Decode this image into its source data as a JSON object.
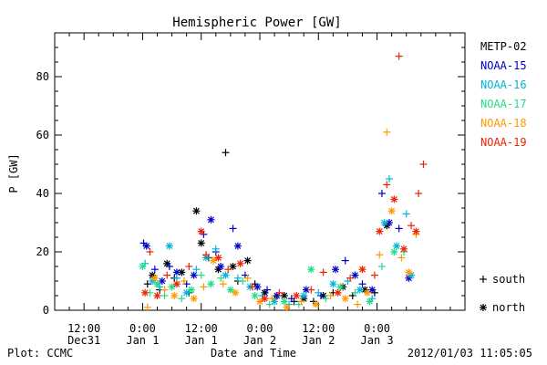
{
  "chart_data": {
    "type": "scatter",
    "title": "Hemispheric Power [GW]",
    "xlabel": "Date and Time",
    "ylabel": "P [GW]",
    "footer_left": "Plot: CCMC",
    "footer_right": "2012/01/03 11:05:05",
    "x_unit": "hours from 2012-01-01 00:00",
    "xlim": [
      -18,
      66
    ],
    "ylim": [
      0,
      95
    ],
    "grid": false,
    "legend_position": "right",
    "x_ticks": [
      {
        "value": -12,
        "line1": "12:00",
        "line2": "Dec31"
      },
      {
        "value": 0,
        "line1": "0:00",
        "line2": "Jan 1"
      },
      {
        "value": 12,
        "line1": "12:00",
        "line2": "Jan 1"
      },
      {
        "value": 24,
        "line1": "0:00",
        "line2": "Jan 2"
      },
      {
        "value": 36,
        "line1": "12:00",
        "line2": "Jan 2"
      },
      {
        "value": 48,
        "line1": "0:00",
        "line2": "Jan 3"
      }
    ],
    "y_ticks": [
      0,
      20,
      40,
      60,
      80
    ],
    "symbol_legend": [
      {
        "symbol": "+",
        "label": "south"
      },
      {
        "symbol": "*",
        "label": "north"
      }
    ],
    "series": [
      {
        "name": "METP-02",
        "color": "#000000",
        "points": [
          {
            "x": 1.0,
            "y": 9,
            "m": "+"
          },
          {
            "x": 2.0,
            "y": 12,
            "m": "*"
          },
          {
            "x": 3.5,
            "y": 7,
            "m": "+"
          },
          {
            "x": 5.0,
            "y": 16,
            "m": "*"
          },
          {
            "x": 6.5,
            "y": 11,
            "m": "+"
          },
          {
            "x": 8.0,
            "y": 13,
            "m": "*"
          },
          {
            "x": 9.5,
            "y": 6,
            "m": "+"
          },
          {
            "x": 11.0,
            "y": 34,
            "m": "*"
          },
          {
            "x": 12.0,
            "y": 23,
            "m": "*"
          },
          {
            "x": 13.5,
            "y": 18,
            "m": "+"
          },
          {
            "x": 15.5,
            "y": 14,
            "m": "*"
          },
          {
            "x": 17.0,
            "y": 54,
            "m": "+"
          },
          {
            "x": 18.5,
            "y": 15,
            "m": "*"
          },
          {
            "x": 19.5,
            "y": 10,
            "m": "+"
          },
          {
            "x": 21.5,
            "y": 17,
            "m": "*"
          },
          {
            "x": 23.0,
            "y": 9,
            "m": "+"
          },
          {
            "x": 25.0,
            "y": 6,
            "m": "*"
          },
          {
            "x": 27.0,
            "y": 4,
            "m": "+"
          },
          {
            "x": 29.0,
            "y": 5,
            "m": "*"
          },
          {
            "x": 31.0,
            "y": 3,
            "m": "+"
          },
          {
            "x": 33.0,
            "y": 4,
            "m": "*"
          },
          {
            "x": 35.0,
            "y": 3,
            "m": "+"
          },
          {
            "x": 37.0,
            "y": 5,
            "m": "*"
          },
          {
            "x": 39.0,
            "y": 6,
            "m": "+"
          },
          {
            "x": 41.0,
            "y": 8,
            "m": "*"
          },
          {
            "x": 43.0,
            "y": 5,
            "m": "+"
          },
          {
            "x": 45.5,
            "y": 7,
            "m": "*"
          },
          {
            "x": 47.5,
            "y": 6,
            "m": "+"
          },
          {
            "x": 50.0,
            "y": 29,
            "m": "*"
          }
        ]
      },
      {
        "name": "NOAA-15",
        "color": "#0000cc",
        "points": [
          {
            "x": 0.2,
            "y": 23,
            "m": "+"
          },
          {
            "x": 0.8,
            "y": 22,
            "m": "*"
          },
          {
            "x": 2.5,
            "y": 14,
            "m": "+"
          },
          {
            "x": 4.0,
            "y": 10,
            "m": "*"
          },
          {
            "x": 5.5,
            "y": 15,
            "m": "+"
          },
          {
            "x": 7.0,
            "y": 13,
            "m": "*"
          },
          {
            "x": 9.0,
            "y": 9,
            "m": "+"
          },
          {
            "x": 10.5,
            "y": 12,
            "m": "*"
          },
          {
            "x": 12.5,
            "y": 26,
            "m": "+"
          },
          {
            "x": 14.0,
            "y": 31,
            "m": "*"
          },
          {
            "x": 15.0,
            "y": 20,
            "m": "+"
          },
          {
            "x": 16.0,
            "y": 15,
            "m": "*"
          },
          {
            "x": 18.5,
            "y": 28,
            "m": "+"
          },
          {
            "x": 19.5,
            "y": 22,
            "m": "*"
          },
          {
            "x": 21.0,
            "y": 12,
            "m": "+"
          },
          {
            "x": 23.5,
            "y": 8,
            "m": "*"
          },
          {
            "x": 25.5,
            "y": 7,
            "m": "+"
          },
          {
            "x": 27.5,
            "y": 5,
            "m": "*"
          },
          {
            "x": 30.5,
            "y": 4,
            "m": "+"
          },
          {
            "x": 33.5,
            "y": 7,
            "m": "*"
          },
          {
            "x": 36.5,
            "y": 5,
            "m": "+"
          },
          {
            "x": 39.5,
            "y": 14,
            "m": "*"
          },
          {
            "x": 41.5,
            "y": 17,
            "m": "+"
          },
          {
            "x": 43.5,
            "y": 12,
            "m": "*"
          },
          {
            "x": 45.0,
            "y": 9,
            "m": "+"
          },
          {
            "x": 47.0,
            "y": 7,
            "m": "*"
          },
          {
            "x": 49.0,
            "y": 40,
            "m": "+"
          },
          {
            "x": 50.5,
            "y": 30,
            "m": "*"
          },
          {
            "x": 52.5,
            "y": 28,
            "m": "+"
          },
          {
            "x": 54.5,
            "y": 11,
            "m": "*"
          }
        ]
      },
      {
        "name": "NOAA-16",
        "color": "#00b4dc",
        "points": [
          {
            "x": 0.5,
            "y": 16,
            "m": "+"
          },
          {
            "x": 2.0,
            "y": 10,
            "m": "*"
          },
          {
            "x": 3.5,
            "y": 8,
            "m": "+"
          },
          {
            "x": 5.5,
            "y": 22,
            "m": "*"
          },
          {
            "x": 7.0,
            "y": 11,
            "m": "+"
          },
          {
            "x": 9.0,
            "y": 6,
            "m": "*"
          },
          {
            "x": 11.0,
            "y": 14,
            "m": "+"
          },
          {
            "x": 13.0,
            "y": 18,
            "m": "*"
          },
          {
            "x": 15.0,
            "y": 21,
            "m": "+"
          },
          {
            "x": 17.0,
            "y": 12,
            "m": "*"
          },
          {
            "x": 19.5,
            "y": 11,
            "m": "+"
          },
          {
            "x": 22.0,
            "y": 8,
            "m": "*"
          },
          {
            "x": 24.5,
            "y": 5,
            "m": "+"
          },
          {
            "x": 27.0,
            "y": 3,
            "m": "*"
          },
          {
            "x": 30.0,
            "y": 2,
            "m": "+"
          },
          {
            "x": 33.0,
            "y": 5,
            "m": "*"
          },
          {
            "x": 36.0,
            "y": 6,
            "m": "+"
          },
          {
            "x": 39.0,
            "y": 9,
            "m": "*"
          },
          {
            "x": 42.0,
            "y": 10,
            "m": "+"
          },
          {
            "x": 44.5,
            "y": 7,
            "m": "*"
          },
          {
            "x": 47.0,
            "y": 4,
            "m": "+"
          },
          {
            "x": 49.5,
            "y": 30,
            "m": "*"
          },
          {
            "x": 50.5,
            "y": 45,
            "m": "+"
          },
          {
            "x": 52.0,
            "y": 22,
            "m": "*"
          },
          {
            "x": 54.0,
            "y": 33,
            "m": "+"
          },
          {
            "x": 55.0,
            "y": 12,
            "m": "*"
          }
        ]
      },
      {
        "name": "NOAA-17",
        "color": "#22dd88",
        "points": [
          {
            "x": 0.0,
            "y": 15,
            "m": "*"
          },
          {
            "x": 1.5,
            "y": 6,
            "m": "+"
          },
          {
            "x": 3.0,
            "y": 9,
            "m": "*"
          },
          {
            "x": 4.5,
            "y": 5,
            "m": "+"
          },
          {
            "x": 6.0,
            "y": 8,
            "m": "*"
          },
          {
            "x": 8.0,
            "y": 4,
            "m": "+"
          },
          {
            "x": 10.0,
            "y": 7,
            "m": "*"
          },
          {
            "x": 12.0,
            "y": 12,
            "m": "+"
          },
          {
            "x": 14.0,
            "y": 9,
            "m": "*"
          },
          {
            "x": 16.0,
            "y": 11,
            "m": "+"
          },
          {
            "x": 18.0,
            "y": 7,
            "m": "*"
          },
          {
            "x": 20.5,
            "y": 10,
            "m": "+"
          },
          {
            "x": 23.0,
            "y": 5,
            "m": "*"
          },
          {
            "x": 26.0,
            "y": 2,
            "m": "+"
          },
          {
            "x": 29.0,
            "y": 3,
            "m": "*"
          },
          {
            "x": 32.0,
            "y": 2,
            "m": "+"
          },
          {
            "x": 34.5,
            "y": 14,
            "m": "*"
          },
          {
            "x": 37.5,
            "y": 4,
            "m": "+"
          },
          {
            "x": 40.5,
            "y": 8,
            "m": "*"
          },
          {
            "x": 43.5,
            "y": 6,
            "m": "+"
          },
          {
            "x": 46.5,
            "y": 3,
            "m": "*"
          },
          {
            "x": 49.0,
            "y": 15,
            "m": "+"
          },
          {
            "x": 51.5,
            "y": 20,
            "m": "*"
          },
          {
            "x": 53.5,
            "y": 20,
            "m": "+"
          }
        ]
      },
      {
        "name": "NOAA-18",
        "color": "#ff9900",
        "points": [
          {
            "x": 1.0,
            "y": 1,
            "m": "+"
          },
          {
            "x": 2.5,
            "y": 11,
            "m": "*"
          },
          {
            "x": 4.5,
            "y": 7,
            "m": "+"
          },
          {
            "x": 6.5,
            "y": 5,
            "m": "*"
          },
          {
            "x": 8.5,
            "y": 10,
            "m": "+"
          },
          {
            "x": 10.5,
            "y": 4,
            "m": "*"
          },
          {
            "x": 12.5,
            "y": 8,
            "m": "+"
          },
          {
            "x": 14.5,
            "y": 17,
            "m": "*"
          },
          {
            "x": 16.5,
            "y": 9,
            "m": "+"
          },
          {
            "x": 19.0,
            "y": 6,
            "m": "*"
          },
          {
            "x": 21.5,
            "y": 11,
            "m": "+"
          },
          {
            "x": 24.0,
            "y": 3,
            "m": "*"
          },
          {
            "x": 26.5,
            "y": 4,
            "m": "+"
          },
          {
            "x": 29.5,
            "y": 1,
            "m": "*"
          },
          {
            "x": 32.5,
            "y": 3,
            "m": "+"
          },
          {
            "x": 35.5,
            "y": 2,
            "m": "*"
          },
          {
            "x": 38.5,
            "y": 5,
            "m": "+"
          },
          {
            "x": 41.5,
            "y": 4,
            "m": "*"
          },
          {
            "x": 44.0,
            "y": 2,
            "m": "+"
          },
          {
            "x": 46.0,
            "y": 6,
            "m": "*"
          },
          {
            "x": 48.5,
            "y": 19,
            "m": "+"
          },
          {
            "x": 50.0,
            "y": 61,
            "m": "+"
          },
          {
            "x": 51.0,
            "y": 34,
            "m": "*"
          },
          {
            "x": 53.0,
            "y": 18,
            "m": "+"
          },
          {
            "x": 54.5,
            "y": 13,
            "m": "*"
          },
          {
            "x": 56.0,
            "y": 26,
            "m": "+"
          }
        ]
      },
      {
        "name": "NOAA-19",
        "color": "#ee2200",
        "points": [
          {
            "x": 0.5,
            "y": 6,
            "m": "*"
          },
          {
            "x": 1.5,
            "y": 20,
            "m": "+"
          },
          {
            "x": 3.0,
            "y": 5,
            "m": "*"
          },
          {
            "x": 5.0,
            "y": 12,
            "m": "+"
          },
          {
            "x": 7.0,
            "y": 9,
            "m": "*"
          },
          {
            "x": 9.5,
            "y": 15,
            "m": "+"
          },
          {
            "x": 12.0,
            "y": 27,
            "m": "*"
          },
          {
            "x": 13.0,
            "y": 19,
            "m": "+"
          },
          {
            "x": 15.5,
            "y": 18,
            "m": "*"
          },
          {
            "x": 17.5,
            "y": 14,
            "m": "+"
          },
          {
            "x": 20.0,
            "y": 16,
            "m": "*"
          },
          {
            "x": 22.5,
            "y": 8,
            "m": "+"
          },
          {
            "x": 25.0,
            "y": 4,
            "m": "*"
          },
          {
            "x": 28.0,
            "y": 6,
            "m": "+"
          },
          {
            "x": 31.5,
            "y": 5,
            "m": "*"
          },
          {
            "x": 34.5,
            "y": 7,
            "m": "+"
          },
          {
            "x": 37.0,
            "y": 13,
            "m": "+"
          },
          {
            "x": 40.0,
            "y": 6,
            "m": "*"
          },
          {
            "x": 42.5,
            "y": 11,
            "m": "+"
          },
          {
            "x": 45.0,
            "y": 14,
            "m": "*"
          },
          {
            "x": 47.5,
            "y": 12,
            "m": "+"
          },
          {
            "x": 48.5,
            "y": 27,
            "m": "*"
          },
          {
            "x": 50.0,
            "y": 43,
            "m": "+"
          },
          {
            "x": 51.5,
            "y": 38,
            "m": "*"
          },
          {
            "x": 52.5,
            "y": 87,
            "m": "+"
          },
          {
            "x": 53.5,
            "y": 21,
            "m": "*"
          },
          {
            "x": 55.0,
            "y": 29,
            "m": "+"
          },
          {
            "x": 56.5,
            "y": 40,
            "m": "+"
          },
          {
            "x": 57.5,
            "y": 50,
            "m": "+"
          },
          {
            "x": 56.0,
            "y": 27,
            "m": "*"
          }
        ]
      }
    ]
  }
}
